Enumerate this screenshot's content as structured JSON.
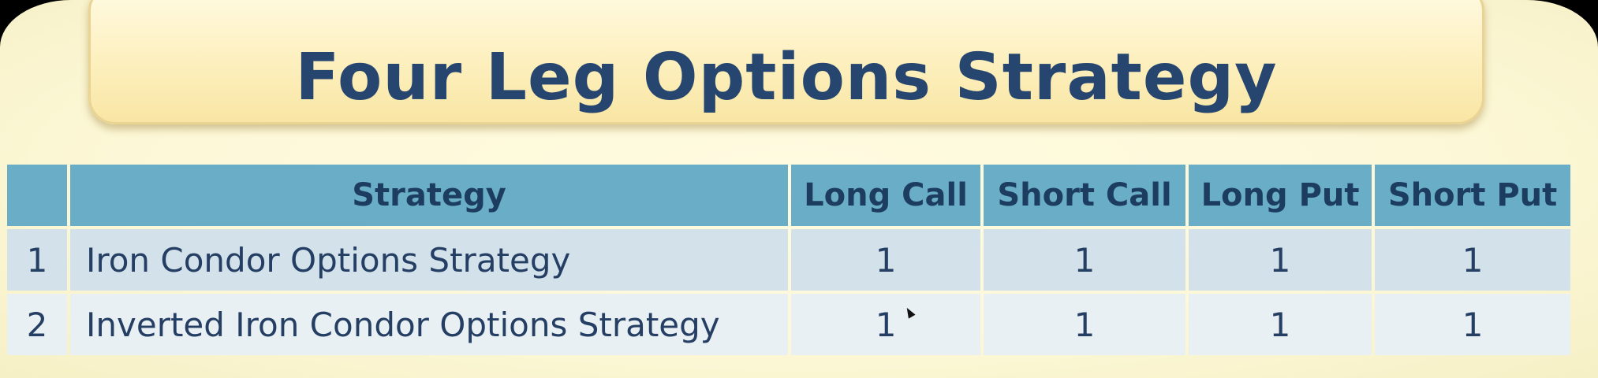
{
  "slide": {
    "title": "Four Leg Options Strategy"
  },
  "table": {
    "headers": [
      "",
      "Strategy",
      "Long Call",
      "Short Call",
      "Long Put",
      "Short Put"
    ],
    "rows": [
      {
        "num": "1",
        "strategy": "Iron Condor Options Strategy",
        "long_call": "1",
        "short_call": "1",
        "long_put": "1",
        "short_put": "1"
      },
      {
        "num": "2",
        "strategy": "Inverted Iron Condor Options Strategy",
        "long_call": "1",
        "short_call": "1",
        "long_put": "1",
        "short_put": "1"
      }
    ]
  },
  "colors": {
    "header_bg": "#6aadc7",
    "row_odd_bg": "#d3e2ea",
    "row_even_bg": "#e9f0f4",
    "title_text": "#27466f"
  }
}
